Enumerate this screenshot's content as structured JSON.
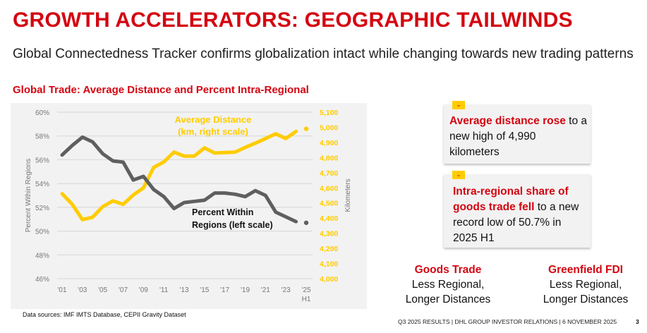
{
  "header": {
    "title": "GROWTH ACCELERATORS: GEOGRAPHIC TAILWINDS",
    "subtitle": "Global Connectedness Tracker confirms globalization intact while changing towards new trading patterns"
  },
  "chart_data": {
    "type": "line",
    "title": "Global Trade: Average Distance and Percent Intra-Regional",
    "x": [
      "2001",
      "2002",
      "2003",
      "2004",
      "2005",
      "2006",
      "2007",
      "2008",
      "2009",
      "2010",
      "2011",
      "2012",
      "2013",
      "2014",
      "2015",
      "2016",
      "2017",
      "2018",
      "2019",
      "2020",
      "2021",
      "2022",
      "2023",
      "2024",
      "2025 H1"
    ],
    "x_tick_labels": [
      "'01",
      "'03",
      "'05",
      "'07",
      "'09",
      "'11",
      "'13",
      "'15",
      "'17",
      "'19",
      "'21",
      "'23",
      "'25"
    ],
    "x_tick_sublabel": "H1",
    "y_left": {
      "label": "Percent Within Regions",
      "range": [
        46,
        60
      ],
      "ticks": [
        "46%",
        "48%",
        "50%",
        "52%",
        "54%",
        "56%",
        "58%",
        "60%"
      ]
    },
    "y_right": {
      "label": "Kilometers",
      "range": [
        4000,
        5100
      ],
      "ticks": [
        "4,000",
        "4,100",
        "4,200",
        "4,300",
        "4,400",
        "4,500",
        "4,600",
        "4,700",
        "4,800",
        "4,900",
        "5,000",
        "5,100"
      ]
    },
    "grid": true,
    "series": [
      {
        "name": "Average Distance (km, right scale)",
        "label_lines": [
          "Average Distance",
          "(km, right scale)"
        ],
        "axis": "right",
        "color": "#ffcc00",
        "values": [
          4561,
          4491,
          4390,
          4406,
          4476,
          4514,
          4491,
          4553,
          4600,
          4735,
          4771,
          4836,
          4810,
          4810,
          4864,
          4830,
          4833,
          4836,
          4867,
          4895,
          4926,
          4957,
          4926,
          4973,
          4990
        ]
      },
      {
        "name": "Percent Within Regions (left scale)",
        "label_lines": [
          "Percent Within",
          "Regions (left scale)"
        ],
        "axis": "left",
        "color": "#5f5f5f",
        "values": [
          56.4,
          57.2,
          57.9,
          57.5,
          56.5,
          55.9,
          55.8,
          54.3,
          54.6,
          53.5,
          52.9,
          51.9,
          52.4,
          52.5,
          52.6,
          53.2,
          53.2,
          53.1,
          52.9,
          53.4,
          53.0,
          51.6,
          51.2,
          50.8,
          50.7
        ]
      }
    ],
    "last_point_style": "dot"
  },
  "source": "Data sources: IMF IMTS Database, CEPII Gravity Dataset",
  "cards": [
    {
      "icon": "chevron-down-icon",
      "highlight": "Average distance rose",
      "text": " to a new high of 4,990 kilometers"
    },
    {
      "icon": "chevron-down-icon",
      "highlight": "Intra-regional share of goods trade fell",
      "text": " to a new record low of 50.7%  in 2025 H1"
    }
  ],
  "columns": [
    {
      "heading": "Goods Trade",
      "line1": "Less Regional,",
      "line2": "Longer Distances"
    },
    {
      "heading": "Greenfield FDI",
      "line1": "Less Regional,",
      "line2": "Longer Distances"
    }
  ],
  "footer": {
    "text": "Q3 2025 RESULTS | DHL GROUP INVESTOR RELATIONS | 6 NOVEMBER 2025",
    "page": "3"
  }
}
